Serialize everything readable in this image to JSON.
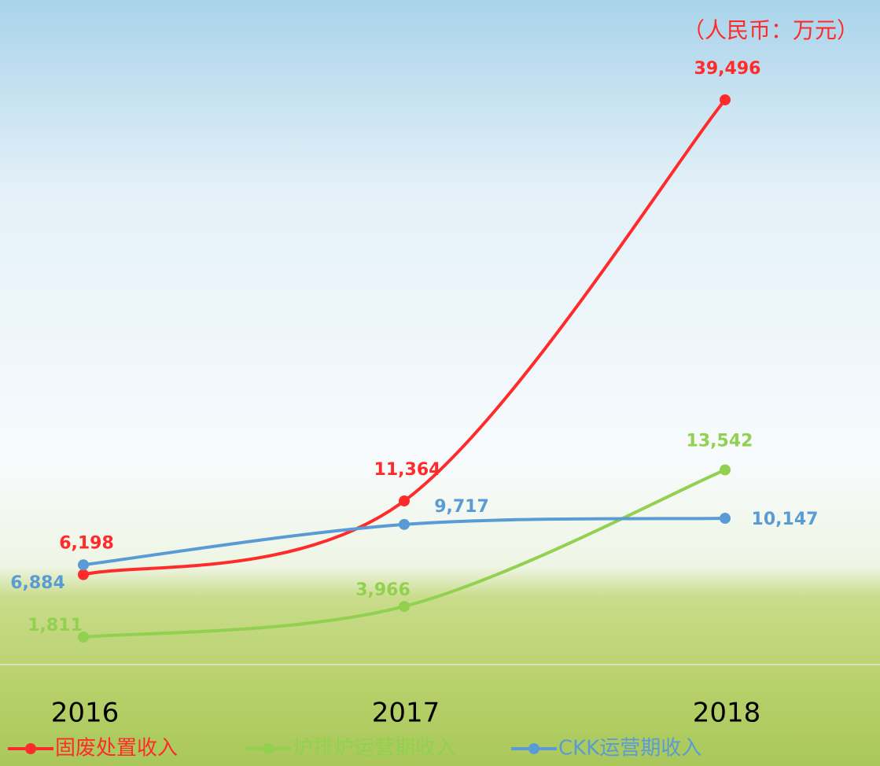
{
  "chart_data": {
    "type": "line",
    "unit_label": "（人民币：万元）",
    "categories": [
      "2016",
      "2017",
      "2018"
    ],
    "series": [
      {
        "name": "固废处置收入",
        "color": "#ff2b2b",
        "values": [
          6198,
          11364,
          39496
        ],
        "value_labels": [
          "6,198",
          "11,364",
          "39,496"
        ]
      },
      {
        "name": "炉排炉运营期收入",
        "color": "#92d050",
        "values": [
          1811,
          3966,
          13542
        ],
        "value_labels": [
          "1,811",
          "3,966",
          "13,542"
        ]
      },
      {
        "name": "CKK运营期收入",
        "color": "#5b9bd5",
        "values": [
          6884,
          9717,
          10147
        ],
        "value_labels": [
          "6,884",
          "9,717",
          "10,147"
        ]
      }
    ]
  }
}
